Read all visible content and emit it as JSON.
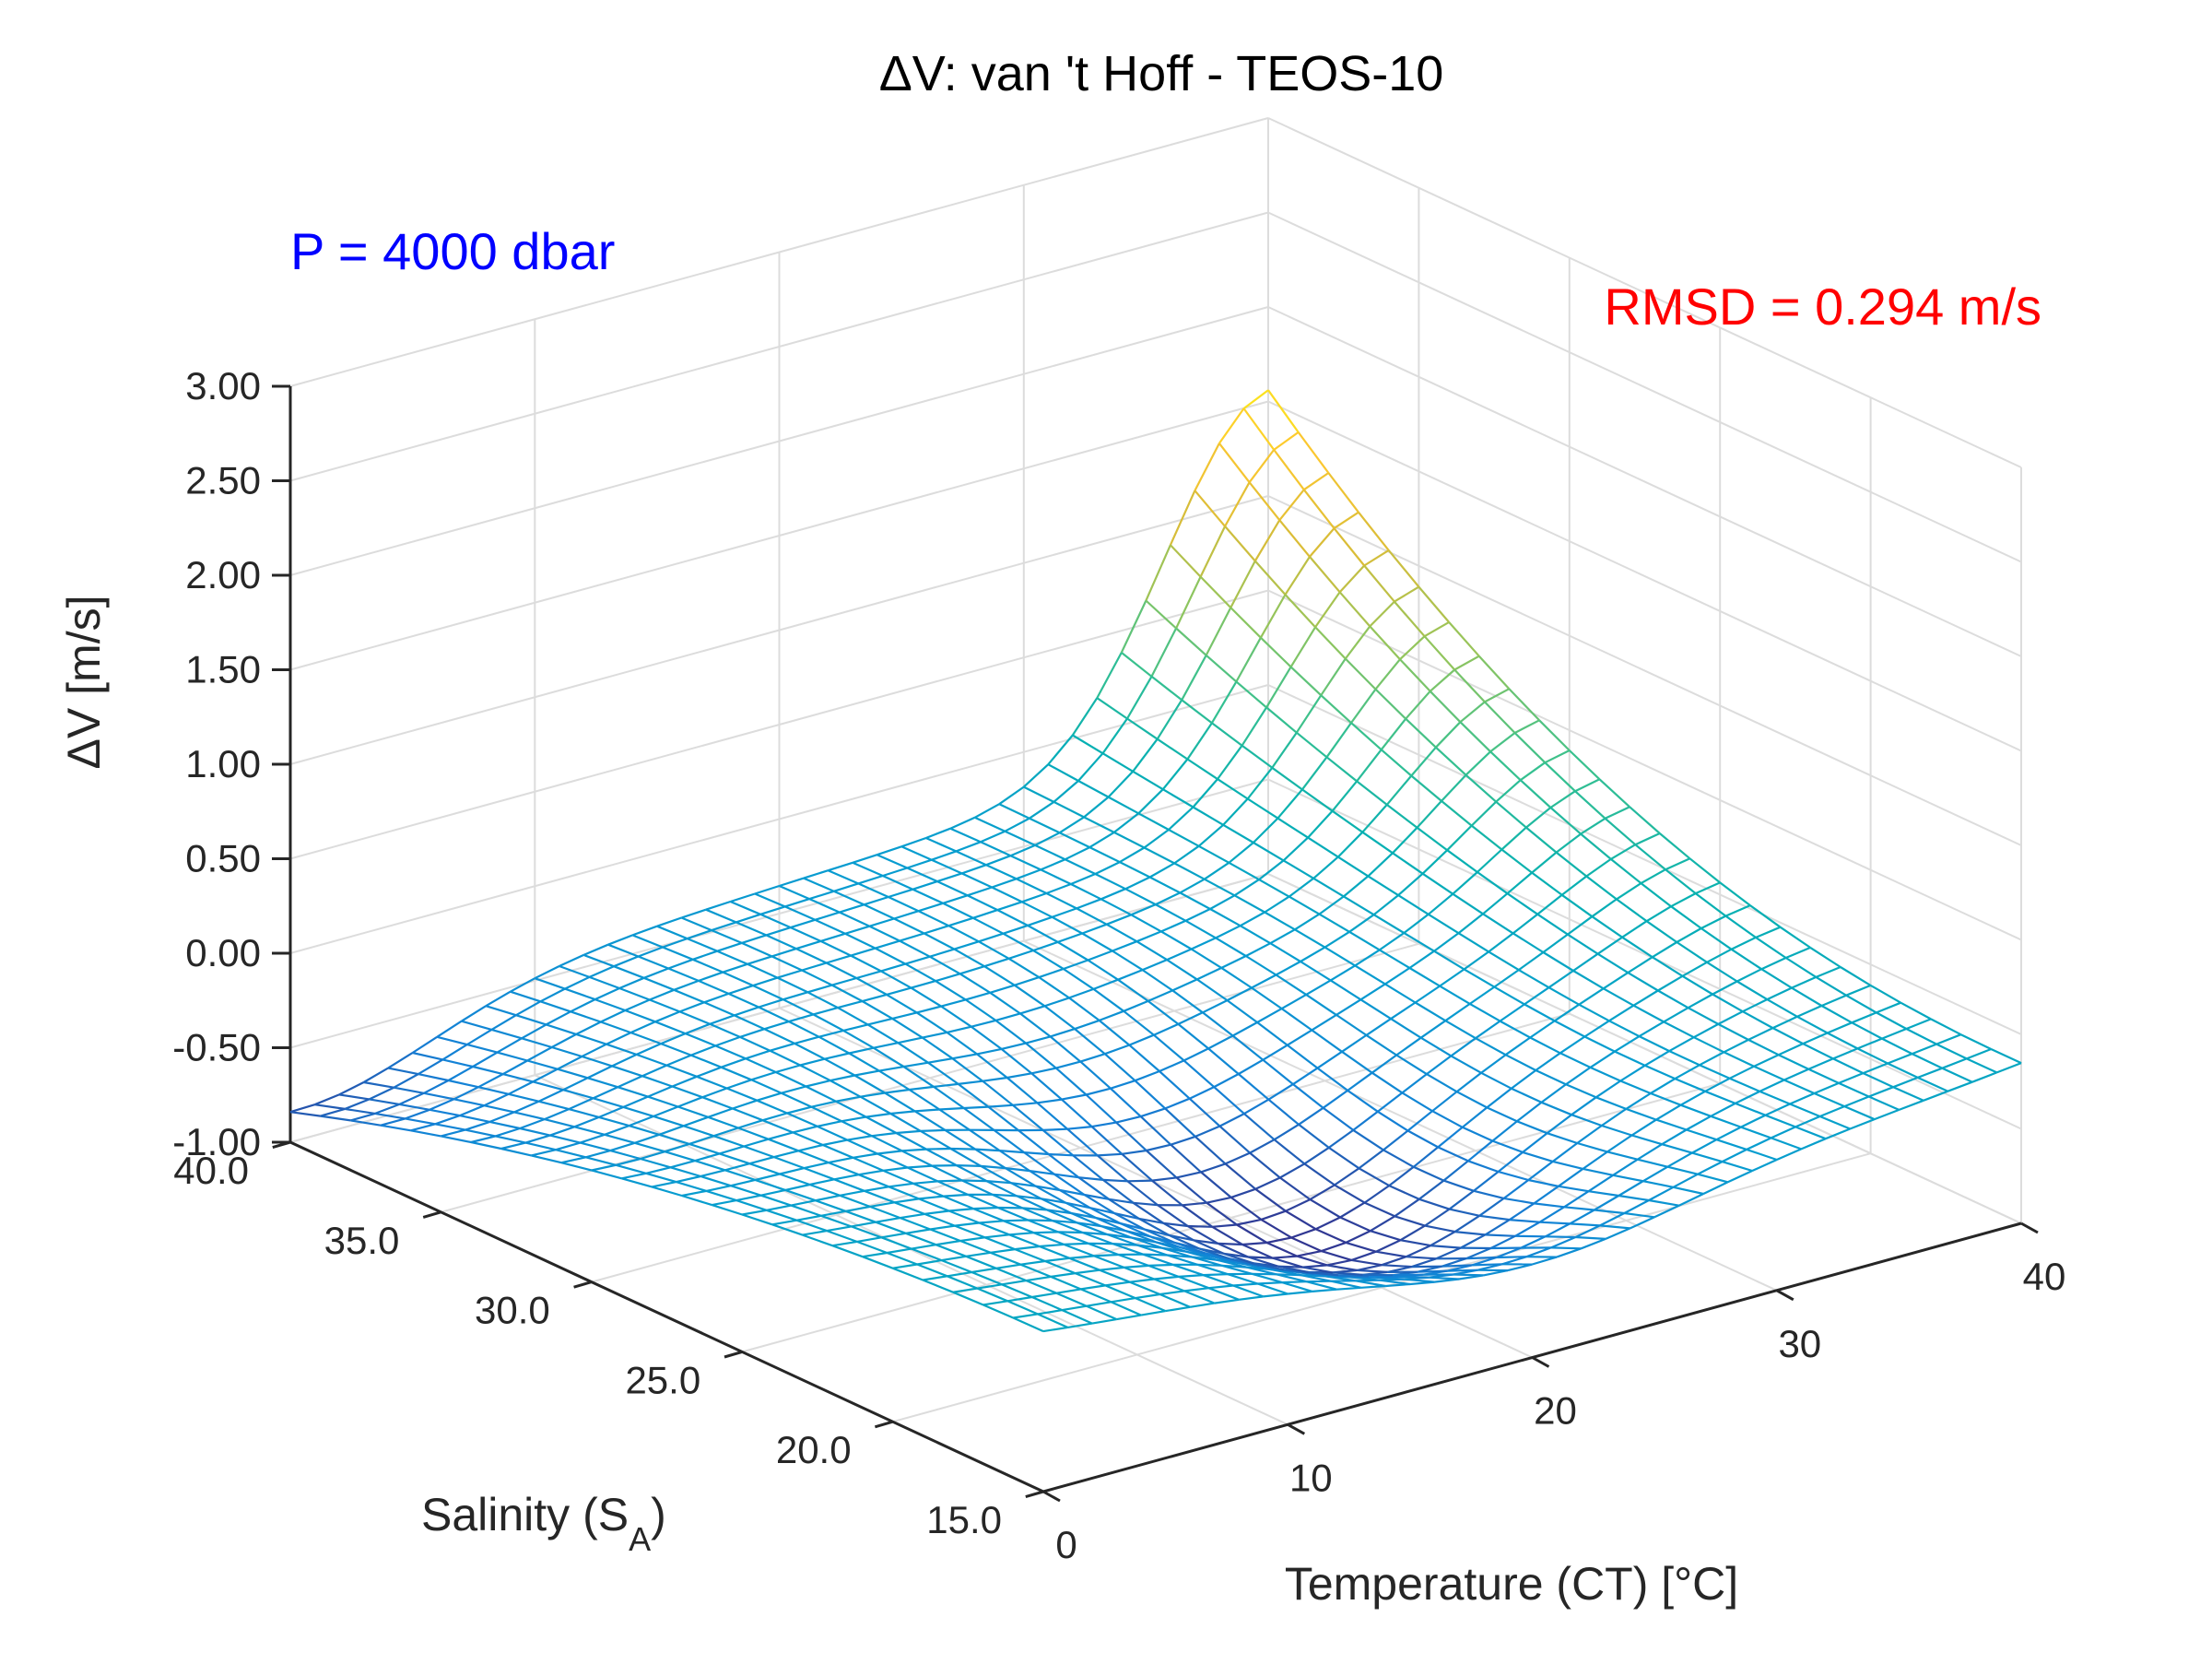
{
  "chart_data": {
    "type": "surface",
    "render_style": "mesh",
    "title": "ΔV: van 't Hoff - TEOS-10",
    "annotations": {
      "pressure": "P = 4000 dbar",
      "rmsd": "RMSD = 0.294 m/s"
    },
    "xlabel": "Temperature (CT) [°C]",
    "ylabel": "Salinity (S",
    "ylabel_sub": "A",
    "ylabel_end": ")",
    "zlabel": "ΔV [m/s]",
    "xlim": [
      0,
      40
    ],
    "ylim": [
      15,
      40
    ],
    "zlim": [
      -1,
      3
    ],
    "x_ticks": [
      0,
      10,
      20,
      30,
      40
    ],
    "x_tick_labels": [
      "0",
      "10",
      "20",
      "30",
      "40"
    ],
    "y_ticks": [
      15,
      20,
      25,
      30,
      35,
      40
    ],
    "y_tick_labels": [
      "15.0",
      "20.0",
      "25.0",
      "30.0",
      "35.0",
      "40.0"
    ],
    "z_ticks": [
      -1,
      -0.5,
      0,
      0.5,
      1,
      1.5,
      2,
      2.5,
      3
    ],
    "z_tick_labels": [
      "-1.00",
      "-0.50",
      "0.00",
      "0.50",
      "1.00",
      "1.50",
      "2.00",
      "2.50",
      "3.00"
    ],
    "grid": true,
    "colormap": "parula",
    "colors": {
      "pressure_annotation": "#0000ff",
      "rmsd_annotation": "#ff0000",
      "axis": "#262626",
      "grid": "#dcdcdc"
    },
    "grid_resolution": {
      "temperature_step": 1,
      "salinity_step": 1
    },
    "surface_samples": [
      {
        "CT": 0,
        "SA": 15,
        "dV": -0.3
      },
      {
        "CT": 40,
        "SA": 40,
        "dV": 1.6
      },
      {
        "CT": 40,
        "SA": 15,
        "dV": -0.3
      },
      {
        "CT": 5,
        "SA": 40,
        "dV": -0.9
      },
      {
        "CT": 25,
        "SA": 40,
        "dV": -0.5
      },
      {
        "CT": 10,
        "SA": 15,
        "dV": -0.6
      },
      {
        "CT": 20,
        "SA": 28,
        "dV": -0.95
      }
    ]
  }
}
